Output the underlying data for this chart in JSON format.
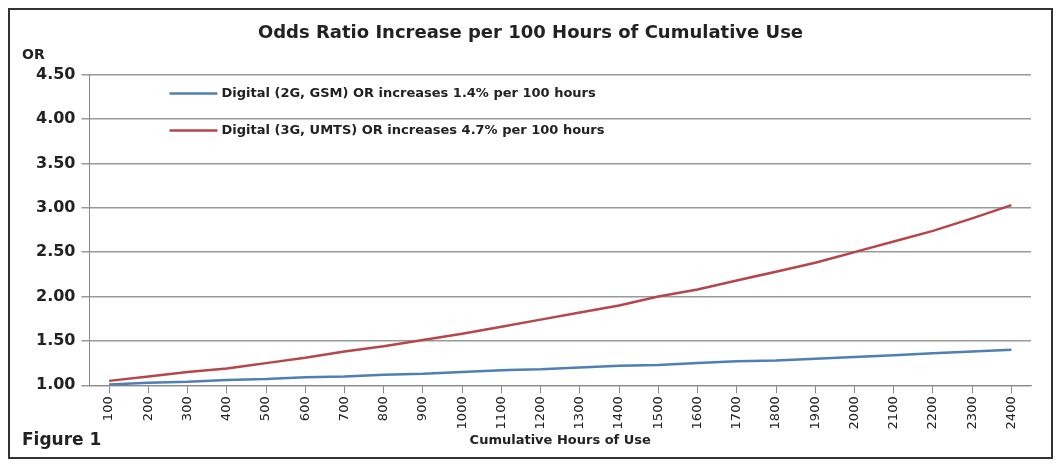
{
  "chart_data": {
    "type": "line",
    "title": "Odds Ratio Increase per 100 Hours of Cumulative Use",
    "ylabel": "OR",
    "xlabel": "Cumulative Hours of Use",
    "annotations": [
      "Figure 1"
    ],
    "categories": [
      "100",
      "200",
      "300",
      "400",
      "500",
      "600",
      "700",
      "800",
      "900",
      "1000",
      "1100",
      "1200",
      "1300",
      "1400",
      "1500",
      "1600",
      "1700",
      "1800",
      "1900",
      "2000",
      "2100",
      "2200",
      "2300",
      "2400"
    ],
    "series": [
      {
        "name": "Digital (2G, GSM) OR increases 1.4% per 100 hours",
        "color": "#4f7fb5",
        "values": [
          1.01,
          1.03,
          1.04,
          1.06,
          1.07,
          1.09,
          1.1,
          1.12,
          1.13,
          1.15,
          1.17,
          1.18,
          1.2,
          1.22,
          1.23,
          1.25,
          1.27,
          1.28,
          1.3,
          1.32,
          1.34,
          1.36,
          1.38,
          1.4
        ]
      },
      {
        "name": "Digital (3G, UMTS) OR increases 4.7% per 100 hours",
        "color": "#b5474a",
        "values": [
          1.05,
          1.1,
          1.15,
          1.19,
          1.25,
          1.31,
          1.38,
          1.44,
          1.51,
          1.58,
          1.66,
          1.74,
          1.82,
          1.9,
          2.0,
          2.08,
          2.18,
          2.28,
          2.38,
          2.5,
          2.62,
          2.74,
          2.88,
          3.03
        ]
      }
    ],
    "ylim": [
      1,
      4.5
    ],
    "yticks": [
      {
        "value": 1,
        "label": "1.00"
      },
      {
        "value": 1.5,
        "label": "1.50"
      },
      {
        "value": 2,
        "label": "2.00"
      },
      {
        "value": 2.5,
        "label": "2.50"
      },
      {
        "value": 3,
        "label": "3.00"
      },
      {
        "value": 3.5,
        "label": "3.50"
      },
      {
        "value": 4,
        "label": "4.00"
      },
      {
        "value": 4.5,
        "label": "4.50"
      }
    ],
    "grid": "y",
    "legend": "top left",
    "marker": "none",
    "line_style": "solid"
  }
}
